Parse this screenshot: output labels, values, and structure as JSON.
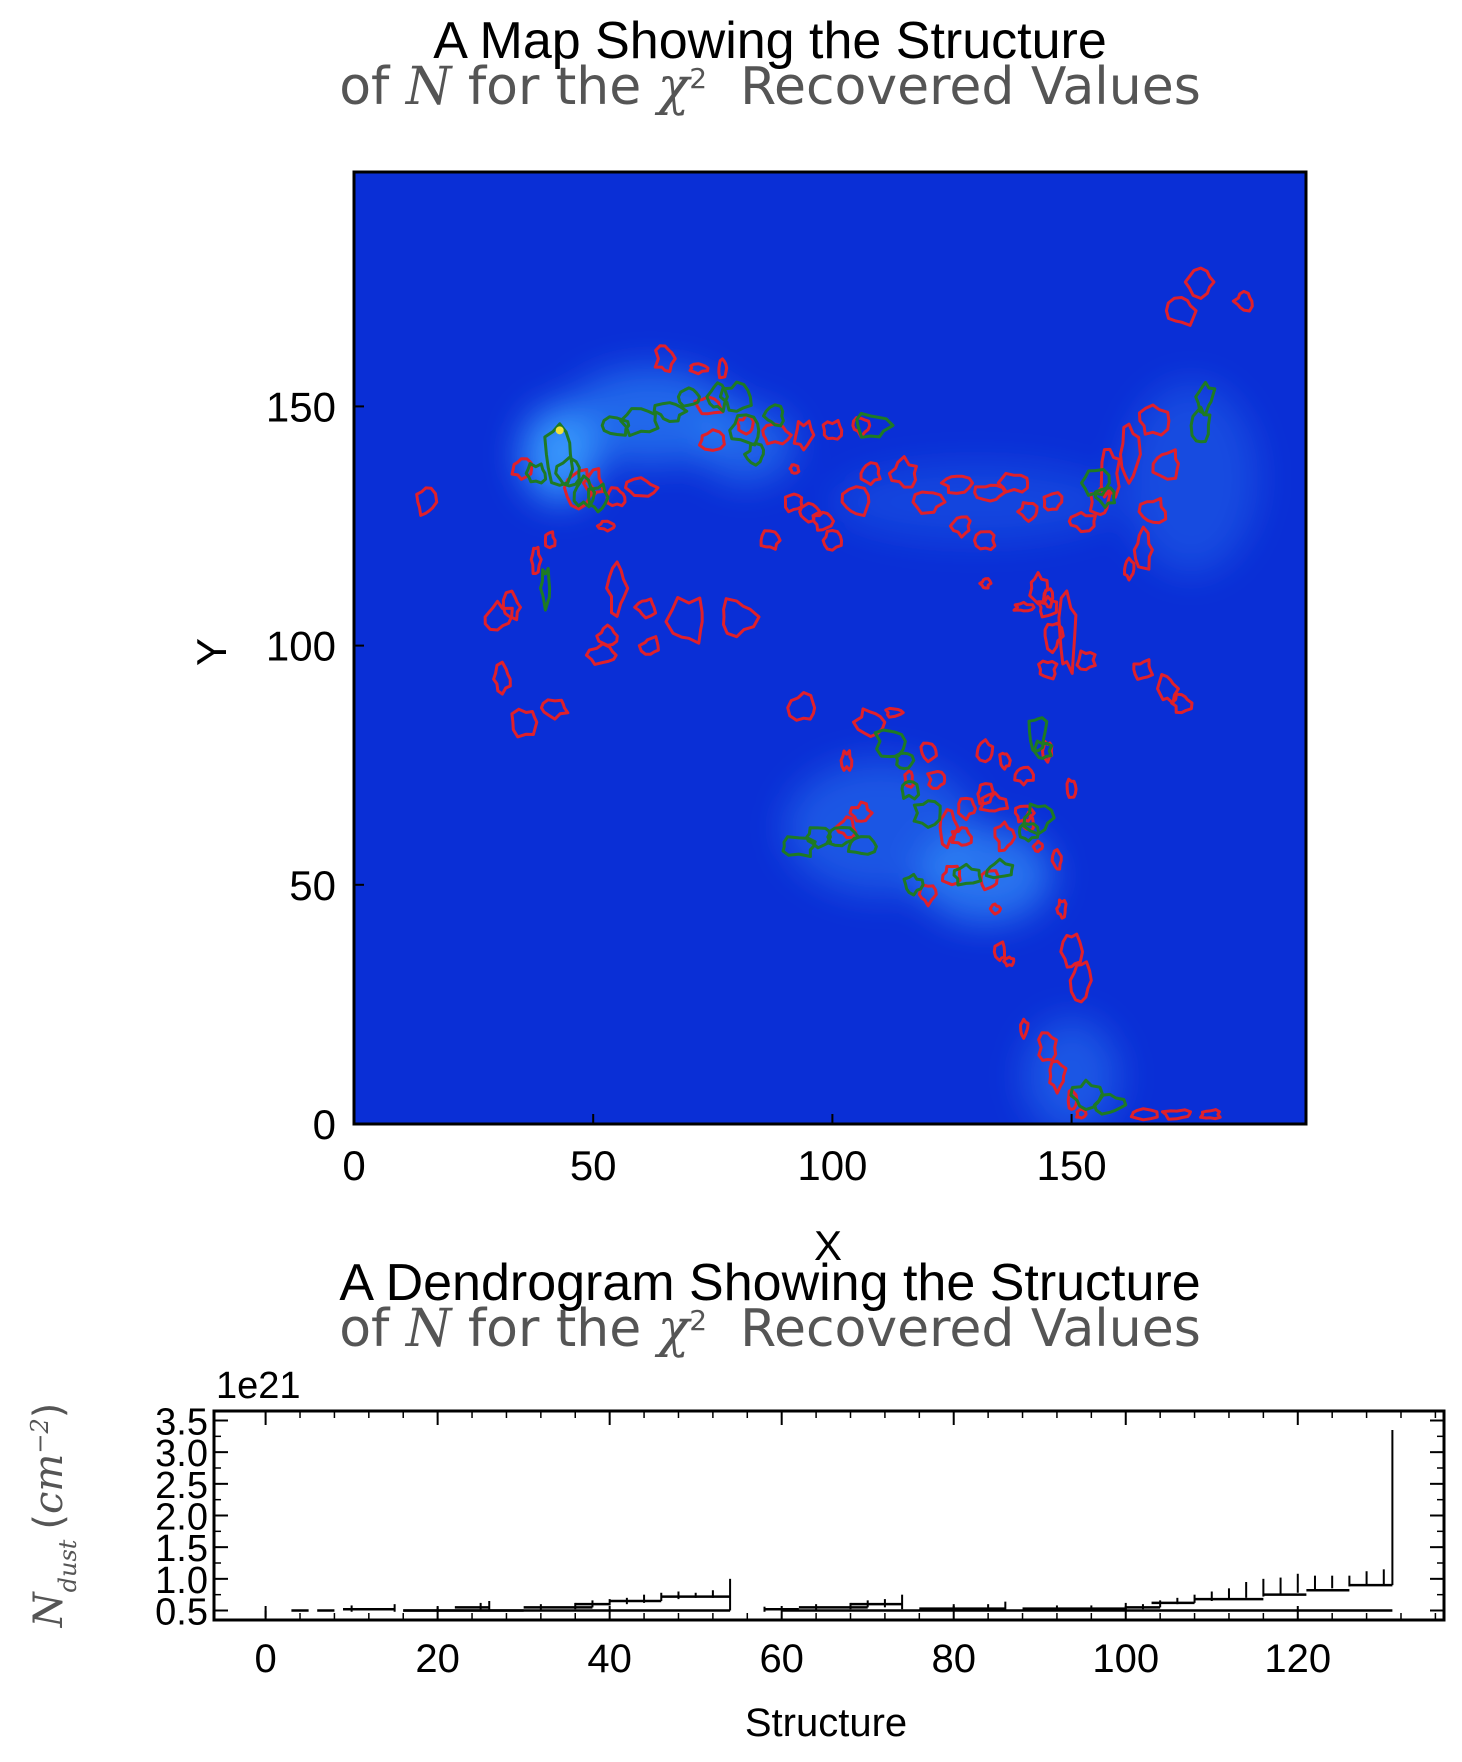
{
  "chart_data": [
    {
      "type": "heatmap",
      "title_line1": "A Map Showing the Structure",
      "title_line2": {
        "pre": "of ",
        "var": "N",
        "mid": " for the ",
        "chi": "χ",
        "sup": "2",
        "post": "  Recovered Values"
      },
      "xlabel": "X",
      "ylabel": "Y",
      "xlim": [
        0,
        199
      ],
      "ylim": [
        0,
        199
      ],
      "xticks": [
        0,
        50,
        100,
        150
      ],
      "yticks": [
        0,
        50,
        100,
        150
      ],
      "colors": {
        "background": "#0a2fd6",
        "bright": "#3aa0ff",
        "leaf_contour": "#e0202a",
        "branch_contour": "#1e7a24",
        "peak": "#f2e23a"
      },
      "bright_regions": [
        {
          "x": 43,
          "y": 140,
          "rx": 8,
          "ry": 10,
          "strength": 0.9
        },
        {
          "x": 62,
          "y": 148,
          "rx": 18,
          "ry": 10,
          "strength": 0.5
        },
        {
          "x": 82,
          "y": 142,
          "rx": 10,
          "ry": 8,
          "strength": 0.45
        },
        {
          "x": 132,
          "y": 52,
          "rx": 14,
          "ry": 10,
          "strength": 0.6
        },
        {
          "x": 110,
          "y": 62,
          "rx": 20,
          "ry": 14,
          "strength": 0.35
        },
        {
          "x": 150,
          "y": 10,
          "rx": 10,
          "ry": 12,
          "strength": 0.35
        },
        {
          "x": 175,
          "y": 135,
          "rx": 14,
          "ry": 20,
          "strength": 0.25
        },
        {
          "x": 130,
          "y": 130,
          "rx": 30,
          "ry": 8,
          "strength": 0.2
        }
      ],
      "leaf_contours": [
        [
          15,
          130,
          2,
          3
        ],
        [
          35,
          137,
          2,
          2
        ],
        [
          30,
          106,
          3,
          3
        ],
        [
          33,
          108,
          2,
          3
        ],
        [
          31,
          93,
          2,
          3
        ],
        [
          36,
          84,
          3,
          3
        ],
        [
          42,
          87,
          3,
          2
        ],
        [
          38,
          118,
          1,
          3
        ],
        [
          41,
          122,
          1,
          2
        ],
        [
          47,
          133,
          3,
          4
        ],
        [
          50,
          134,
          2,
          3
        ],
        [
          55,
          131,
          2,
          2
        ],
        [
          53,
          125,
          2,
          1
        ],
        [
          60,
          133,
          3,
          2
        ],
        [
          55,
          112,
          2,
          5
        ],
        [
          53,
          102,
          2,
          2
        ],
        [
          52,
          98,
          3,
          2
        ],
        [
          61,
          108,
          2,
          2
        ],
        [
          62,
          100,
          2,
          2
        ],
        [
          70,
          105,
          4,
          5
        ],
        [
          80,
          106,
          4,
          4
        ],
        [
          65,
          160,
          2,
          3
        ],
        [
          72,
          158,
          2,
          1
        ],
        [
          77,
          158,
          1,
          2
        ],
        [
          74,
          150,
          3,
          2
        ],
        [
          75,
          143,
          3,
          2
        ],
        [
          82,
          146,
          2,
          2
        ],
        [
          88,
          144,
          3,
          2
        ],
        [
          94,
          144,
          2,
          3
        ],
        [
          100,
          145,
          2,
          2
        ],
        [
          106,
          146,
          2,
          2
        ],
        [
          92,
          137,
          1,
          1
        ],
        [
          92,
          130,
          2,
          2
        ],
        [
          95,
          128,
          2,
          2
        ],
        [
          98,
          126,
          2,
          2
        ],
        [
          87,
          122,
          2,
          2
        ],
        [
          100,
          122,
          2,
          2
        ],
        [
          105,
          130,
          3,
          3
        ],
        [
          108,
          136,
          2,
          2
        ],
        [
          115,
          136,
          3,
          3
        ],
        [
          120,
          130,
          3,
          3
        ],
        [
          126,
          134,
          3,
          2
        ],
        [
          133,
          132,
          3,
          2
        ],
        [
          138,
          134,
          3,
          2
        ],
        [
          141,
          128,
          2,
          2
        ],
        [
          132,
          122,
          2,
          2
        ],
        [
          127,
          125,
          2,
          2
        ],
        [
          132,
          113,
          1,
          1
        ],
        [
          140,
          108,
          2,
          1
        ],
        [
          143,
          112,
          2,
          3
        ],
        [
          145,
          108,
          2,
          2
        ],
        [
          149,
          102,
          2,
          8
        ],
        [
          153,
          97,
          2,
          2
        ],
        [
          145,
          95,
          2,
          2
        ],
        [
          146,
          102,
          2,
          3
        ],
        [
          145,
          110,
          1,
          2
        ],
        [
          146,
          130,
          2,
          2
        ],
        [
          152,
          126,
          3,
          2
        ],
        [
          156,
          130,
          2,
          3
        ],
        [
          158,
          136,
          2,
          5
        ],
        [
          162,
          140,
          2,
          6
        ],
        [
          167,
          147,
          3,
          3
        ],
        [
          162,
          116,
          1,
          2
        ],
        [
          165,
          120,
          2,
          4
        ],
        [
          167,
          128,
          3,
          3
        ],
        [
          170,
          138,
          3,
          3
        ],
        [
          165,
          95,
          2,
          2
        ],
        [
          170,
          91,
          2,
          3
        ],
        [
          173,
          88,
          2,
          2
        ],
        [
          173,
          170,
          3,
          3
        ],
        [
          177,
          176,
          3,
          3
        ],
        [
          186,
          172,
          2,
          2
        ],
        [
          94,
          87,
          3,
          3
        ],
        [
          103,
          62,
          2,
          2
        ],
        [
          106,
          65,
          2,
          2
        ],
        [
          103,
          76,
          1,
          2
        ],
        [
          108,
          84,
          3,
          3
        ],
        [
          113,
          86,
          2,
          1
        ],
        [
          120,
          78,
          2,
          2
        ],
        [
          122,
          72,
          2,
          2
        ],
        [
          116,
          72,
          1,
          2
        ],
        [
          124,
          62,
          2,
          4
        ],
        [
          127,
          60,
          2,
          2
        ],
        [
          128,
          66,
          2,
          2
        ],
        [
          132,
          69,
          2,
          2
        ],
        [
          134,
          67,
          3,
          2
        ],
        [
          132,
          78,
          2,
          2
        ],
        [
          136,
          76,
          1,
          2
        ],
        [
          140,
          65,
          2,
          2
        ],
        [
          140,
          73,
          2,
          2
        ],
        [
          150,
          70,
          1,
          2
        ],
        [
          120,
          48,
          2,
          2
        ],
        [
          125,
          52,
          2,
          2
        ],
        [
          133,
          51,
          2,
          2
        ],
        [
          134,
          45,
          1,
          1
        ],
        [
          136,
          60,
          2,
          3
        ],
        [
          141,
          63,
          1,
          2
        ],
        [
          143,
          58,
          1,
          1
        ],
        [
          147,
          55,
          1,
          2
        ],
        [
          145,
          78,
          1,
          2
        ],
        [
          148,
          45,
          1,
          2
        ],
        [
          150,
          36,
          2,
          4
        ],
        [
          152,
          30,
          2,
          4
        ],
        [
          135,
          36,
          1,
          2
        ],
        [
          137,
          34,
          1,
          1
        ],
        [
          140,
          20,
          1,
          2
        ],
        [
          145,
          16,
          2,
          3
        ],
        [
          147,
          10,
          2,
          3
        ],
        [
          150,
          5,
          1,
          2
        ],
        [
          152,
          2,
          1,
          1
        ],
        [
          165,
          2,
          3,
          1
        ],
        [
          172,
          2,
          3,
          1
        ],
        [
          179,
          2,
          2,
          1
        ]
      ],
      "branch_contours": [
        [
          43,
          140,
          3,
          6
        ],
        [
          45,
          136,
          3,
          3
        ],
        [
          48,
          132,
          2,
          3
        ],
        [
          51,
          131,
          2,
          3
        ],
        [
          38,
          136,
          2,
          2
        ],
        [
          40,
          112,
          1,
          4
        ],
        [
          55,
          146,
          3,
          2
        ],
        [
          60,
          147,
          4,
          3
        ],
        [
          66,
          149,
          3,
          2
        ],
        [
          70,
          152,
          2,
          2
        ],
        [
          76,
          152,
          2,
          3
        ],
        [
          80,
          152,
          3,
          3
        ],
        [
          82,
          145,
          3,
          3
        ],
        [
          84,
          140,
          2,
          2
        ],
        [
          88,
          148,
          2,
          2
        ],
        [
          108,
          146,
          4,
          3
        ],
        [
          112,
          80,
          3,
          3
        ],
        [
          115,
          76,
          2,
          2
        ],
        [
          116,
          70,
          2,
          2
        ],
        [
          120,
          65,
          3,
          3
        ],
        [
          93,
          58,
          4,
          2
        ],
        [
          97,
          60,
          3,
          2
        ],
        [
          102,
          60,
          3,
          2
        ],
        [
          106,
          58,
          3,
          2
        ],
        [
          117,
          50,
          2,
          2
        ],
        [
          128,
          52,
          3,
          2
        ],
        [
          135,
          53,
          3,
          2
        ],
        [
          143,
          82,
          2,
          4
        ],
        [
          144,
          78,
          2,
          2
        ],
        [
          143,
          64,
          3,
          3
        ],
        [
          141,
          61,
          2,
          2
        ],
        [
          155,
          134,
          3,
          3
        ],
        [
          157,
          131,
          2,
          2
        ],
        [
          177,
          146,
          2,
          4
        ],
        [
          178,
          152,
          2,
          3
        ],
        [
          153,
          6,
          3,
          3
        ],
        [
          158,
          4,
          3,
          2
        ]
      ],
      "peak": [
        43,
        145
      ]
    },
    {
      "type": "line",
      "title_line1": "A Dendrogram Showing the Structure",
      "title_line2": {
        "pre": "of ",
        "var": "N",
        "mid": " for the ",
        "chi": "χ",
        "sup": "2",
        "post": "  Recovered Values"
      },
      "xlabel": "Structure",
      "ylabel": {
        "var": "N",
        "sub": "dust",
        "unit_pre": "(",
        "unit": "cm",
        "exp": "−2",
        "unit_post": ")"
      },
      "offset_text": "1e21",
      "xlim": [
        -6,
        137
      ],
      "ylim": [
        0.35,
        3.65
      ],
      "xticks": [
        0,
        20,
        40,
        60,
        80,
        100,
        120
      ],
      "yticks": [
        "0.5",
        "1.0",
        "1.5",
        "2.0",
        "2.5",
        "3.0",
        "3.5"
      ],
      "ytick_values": [
        0.5,
        1.0,
        1.5,
        2.0,
        2.5,
        3.0,
        3.5
      ],
      "x_minor_step": 4,
      "y_minor_step": 0.25,
      "line_color": "#000000",
      "series": [
        {
          "from": 3,
          "to": 5,
          "y": 0.5
        },
        {
          "from": 6,
          "to": 8,
          "y": 0.5
        },
        {
          "from": 9,
          "to": 15,
          "y": 0.52
        },
        {
          "from": 16,
          "to": 30,
          "y": 0.5
        },
        {
          "from": 22,
          "to": 26,
          "y": 0.55
        },
        {
          "from": 30,
          "to": 38,
          "y": 0.55
        },
        {
          "from": 36,
          "to": 40,
          "y": 0.6
        },
        {
          "from": 40,
          "to": 46,
          "y": 0.65
        },
        {
          "from": 46,
          "to": 54,
          "y": 0.72
        },
        {
          "from": 16,
          "to": 54,
          "y": 0.5
        },
        {
          "from": 58,
          "to": 62,
          "y": 0.52
        },
        {
          "from": 62,
          "to": 70,
          "y": 0.55
        },
        {
          "from": 68,
          "to": 74,
          "y": 0.6
        },
        {
          "from": 60,
          "to": 100,
          "y": 0.5
        },
        {
          "from": 76,
          "to": 86,
          "y": 0.53
        },
        {
          "from": 88,
          "to": 100,
          "y": 0.53
        },
        {
          "from": 100,
          "to": 104,
          "y": 0.55
        },
        {
          "from": 103,
          "to": 108,
          "y": 0.62
        },
        {
          "from": 108,
          "to": 116,
          "y": 0.68
        },
        {
          "from": 116,
          "to": 121,
          "y": 0.75
        },
        {
          "from": 121,
          "to": 126,
          "y": 0.82
        },
        {
          "from": 126,
          "to": 131,
          "y": 0.9
        },
        {
          "from": 100,
          "to": 131,
          "y": 0.5
        }
      ],
      "verticals": [
        [
          0,
          0.4,
          0.5
        ],
        [
          10,
          0.48,
          0.58
        ],
        [
          15,
          0.48,
          0.6
        ],
        [
          20,
          0.48,
          0.55
        ],
        [
          25,
          0.5,
          0.62
        ],
        [
          26,
          0.5,
          0.65
        ],
        [
          32,
          0.5,
          0.6
        ],
        [
          36,
          0.52,
          0.62
        ],
        [
          38,
          0.55,
          0.66
        ],
        [
          40,
          0.58,
          0.68
        ],
        [
          42,
          0.6,
          0.7
        ],
        [
          44,
          0.62,
          0.75
        ],
        [
          46,
          0.65,
          0.78
        ],
        [
          48,
          0.68,
          0.8
        ],
        [
          50,
          0.7,
          0.78
        ],
        [
          52,
          0.7,
          0.82
        ],
        [
          54,
          0.5,
          1.0
        ],
        [
          58,
          0.48,
          0.56
        ],
        [
          64,
          0.5,
          0.6
        ],
        [
          68,
          0.52,
          0.62
        ],
        [
          70,
          0.55,
          0.66
        ],
        [
          72,
          0.55,
          0.68
        ],
        [
          74,
          0.52,
          0.75
        ],
        [
          80,
          0.5,
          0.6
        ],
        [
          84,
          0.5,
          0.6
        ],
        [
          86,
          0.5,
          0.64
        ],
        [
          92,
          0.5,
          0.58
        ],
        [
          96,
          0.5,
          0.58
        ],
        [
          100,
          0.5,
          0.62
        ],
        [
          102,
          0.52,
          0.6
        ],
        [
          104,
          0.55,
          0.66
        ],
        [
          106,
          0.6,
          0.7
        ],
        [
          108,
          0.62,
          0.75
        ],
        [
          110,
          0.65,
          0.8
        ],
        [
          112,
          0.68,
          0.85
        ],
        [
          114,
          0.7,
          0.95
        ],
        [
          116,
          0.72,
          1.0
        ],
        [
          118,
          0.75,
          1.02
        ],
        [
          120,
          0.78,
          1.08
        ],
        [
          122,
          0.82,
          1.05
        ],
        [
          124,
          0.85,
          1.05
        ],
        [
          126,
          0.88,
          1.05
        ],
        [
          128,
          0.9,
          1.12
        ],
        [
          130,
          0.9,
          1.15
        ],
        [
          131,
          0.9,
          3.35
        ]
      ]
    }
  ]
}
